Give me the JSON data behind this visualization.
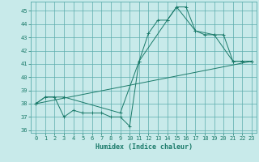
{
  "xlabel": "Humidex (Indice chaleur)",
  "ylabel": "",
  "bg_color": "#c8eaea",
  "grid_color": "#5aacac",
  "line_color": "#1a7a6a",
  "xlim": [
    -0.5,
    23.5
  ],
  "ylim": [
    35.8,
    45.7
  ],
  "xticks": [
    0,
    1,
    2,
    3,
    4,
    5,
    6,
    7,
    8,
    9,
    10,
    11,
    12,
    13,
    14,
    15,
    16,
    17,
    18,
    19,
    20,
    21,
    22,
    23
  ],
  "yticks": [
    36,
    37,
    38,
    39,
    40,
    41,
    42,
    43,
    44,
    45
  ],
  "series1_x": [
    0,
    1,
    2,
    3,
    4,
    5,
    6,
    7,
    8,
    9,
    10,
    11,
    12,
    13,
    14,
    15,
    16,
    17,
    18,
    19,
    20,
    21,
    22,
    23
  ],
  "series1_y": [
    38.0,
    38.5,
    38.5,
    37.0,
    37.5,
    37.3,
    37.3,
    37.3,
    37.0,
    37.0,
    36.3,
    41.2,
    43.3,
    44.3,
    44.3,
    45.3,
    45.3,
    43.5,
    43.2,
    43.2,
    43.2,
    41.2,
    41.2,
    41.2
  ],
  "series2_x": [
    0,
    1,
    3,
    9,
    11,
    14,
    15,
    17,
    19,
    21,
    22,
    23
  ],
  "series2_y": [
    38.0,
    38.5,
    38.5,
    37.3,
    41.2,
    44.3,
    45.3,
    43.5,
    43.2,
    41.2,
    41.2,
    41.2
  ],
  "series3_x": [
    0,
    23
  ],
  "series3_y": [
    38.0,
    41.2
  ]
}
